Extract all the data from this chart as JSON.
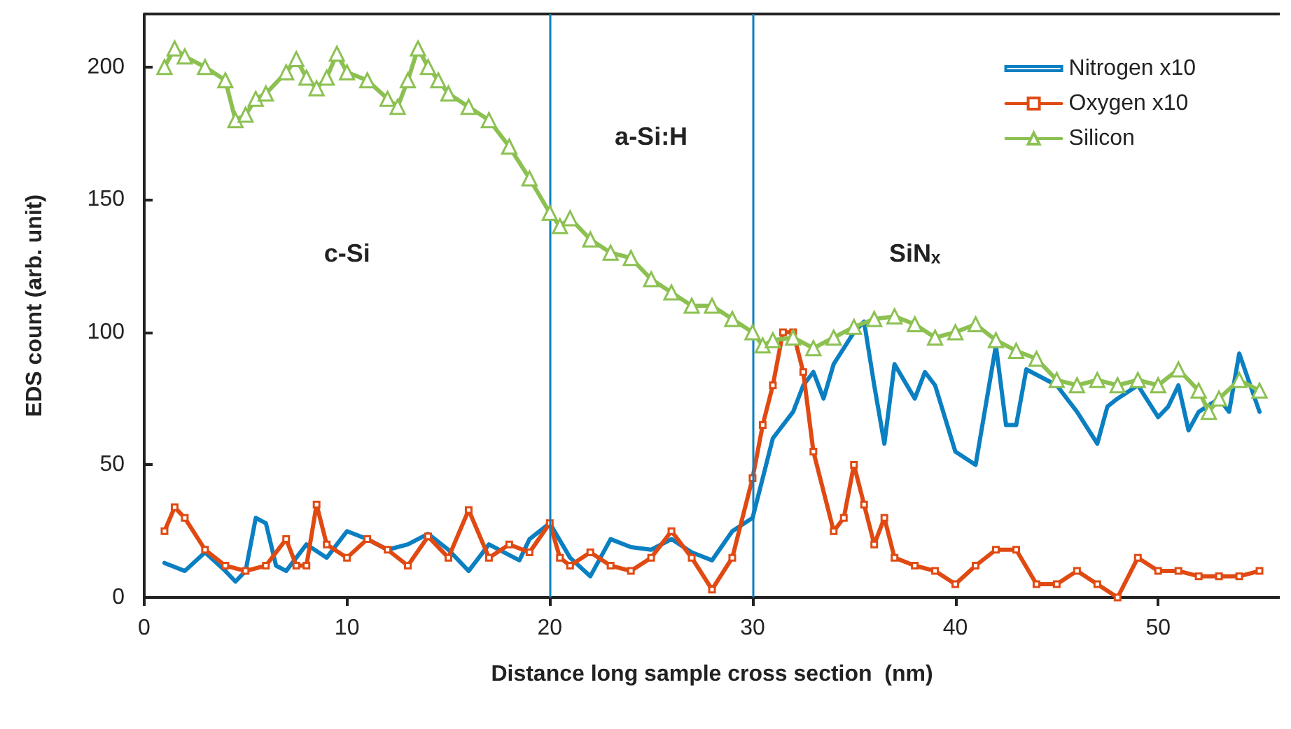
{
  "chart_data": {
    "type": "line",
    "xlabel": "Distance long sample cross section  (nm)",
    "ylabel": "EDS count (arb. unit)",
    "xlim": [
      0,
      56
    ],
    "xticks": [
      0,
      10,
      20,
      30,
      40,
      50
    ],
    "ylim": [
      0,
      220
    ],
    "yticks": [
      0,
      50,
      100,
      150,
      200
    ],
    "grid": false,
    "legend": "top right",
    "line_style": "solid",
    "series": [
      {
        "name": "Nitrogen x10",
        "color": "#0a7fc1",
        "marker": "none",
        "x": [
          1,
          2,
          3,
          4,
          4.5,
          5,
          5.5,
          6,
          6.5,
          7,
          8,
          9,
          10,
          11,
          12,
          13,
          14,
          15,
          16,
          17,
          18,
          18.5,
          19,
          20,
          21,
          22,
          23,
          24,
          25,
          26,
          27,
          28,
          29,
          30,
          30.5,
          31,
          32,
          32.5,
          33,
          33.5,
          34,
          35,
          35.5,
          36,
          36.5,
          37,
          38,
          38.5,
          39,
          40,
          41,
          42,
          42.5,
          43,
          43.5,
          45,
          46,
          47,
          47.5,
          48,
          49,
          50,
          50.5,
          51,
          51.5,
          52,
          53,
          53.5,
          54,
          55
        ],
        "values": [
          13,
          10,
          17,
          10,
          6,
          10,
          30,
          28,
          12,
          10,
          20,
          15,
          25,
          22,
          18,
          20,
          24,
          18,
          10,
          20,
          16,
          14,
          22,
          28,
          15,
          8,
          22,
          19,
          18,
          22,
          17,
          14,
          25,
          30,
          45,
          60,
          70,
          80,
          85,
          75,
          88,
          100,
          104,
          80,
          58,
          88,
          75,
          85,
          80,
          55,
          50,
          95,
          65,
          65,
          86,
          80,
          70,
          58,
          72,
          75,
          80,
          68,
          72,
          80,
          63,
          70,
          75,
          70,
          92,
          70
        ]
      },
      {
        "name": "Oxygen x10",
        "color": "#e04a12",
        "marker": "square",
        "x": [
          1,
          1.5,
          2,
          3,
          4,
          5,
          6,
          7,
          7.5,
          8,
          8.5,
          9,
          10,
          11,
          12,
          13,
          14,
          15,
          16,
          17,
          18,
          19,
          20,
          20.5,
          21,
          22,
          23,
          24,
          25,
          26,
          27,
          28,
          29,
          30,
          30.5,
          31,
          31.5,
          32,
          32.5,
          33,
          34,
          34.5,
          35,
          35.5,
          36,
          36.5,
          37,
          38,
          39,
          40,
          41,
          42,
          43,
          44,
          45,
          46,
          47,
          48,
          49,
          50,
          51,
          52,
          53,
          54,
          55
        ],
        "values": [
          25,
          34,
          30,
          18,
          12,
          10,
          12,
          22,
          12,
          12,
          35,
          20,
          15,
          22,
          18,
          12,
          23,
          15,
          33,
          15,
          20,
          17,
          28,
          15,
          12,
          17,
          12,
          10,
          15,
          25,
          15,
          3,
          15,
          45,
          65,
          80,
          100,
          100,
          85,
          55,
          25,
          30,
          50,
          35,
          20,
          30,
          15,
          12,
          10,
          5,
          12,
          18,
          18,
          5,
          5,
          10,
          5,
          0,
          15,
          10,
          10,
          8,
          8,
          8,
          10
        ]
      },
      {
        "name": "Silicon",
        "color": "#8cc152",
        "marker": "triangle",
        "x": [
          1,
          1.5,
          2,
          3,
          4,
          4.5,
          5,
          5.5,
          6,
          7,
          7.5,
          8,
          8.5,
          9,
          9.5,
          10,
          11,
          12,
          12.5,
          13,
          13.5,
          14,
          14.5,
          15,
          16,
          17,
          18,
          19,
          20,
          20.5,
          21,
          22,
          23,
          24,
          25,
          26,
          27,
          28,
          29,
          30,
          30.5,
          31,
          32,
          33,
          34,
          35,
          36,
          37,
          38,
          39,
          40,
          41,
          42,
          43,
          44,
          45,
          46,
          47,
          48,
          49,
          50,
          51,
          52,
          52.5,
          53,
          54,
          55
        ],
        "values": [
          200,
          207,
          204,
          200,
          195,
          180,
          182,
          188,
          190,
          198,
          203,
          196,
          192,
          196,
          205,
          198,
          195,
          188,
          185,
          195,
          207,
          200,
          195,
          190,
          185,
          180,
          170,
          158,
          145,
          140,
          143,
          135,
          130,
          128,
          120,
          115,
          110,
          110,
          105,
          100,
          95,
          97,
          98,
          94,
          98,
          102,
          105,
          106,
          103,
          98,
          100,
          103,
          97,
          93,
          90,
          82,
          80,
          82,
          80,
          82,
          80,
          86,
          78,
          70,
          75,
          82,
          78
        ]
      }
    ],
    "ref_lines": [
      {
        "axis": "x",
        "value": 20,
        "color": "#0a7fc1"
      },
      {
        "axis": "x",
        "value": 30,
        "color": "#0a7fc1"
      }
    ],
    "annotations": [
      "c-Si",
      "a-Si:H",
      "SiNₓ"
    ]
  }
}
